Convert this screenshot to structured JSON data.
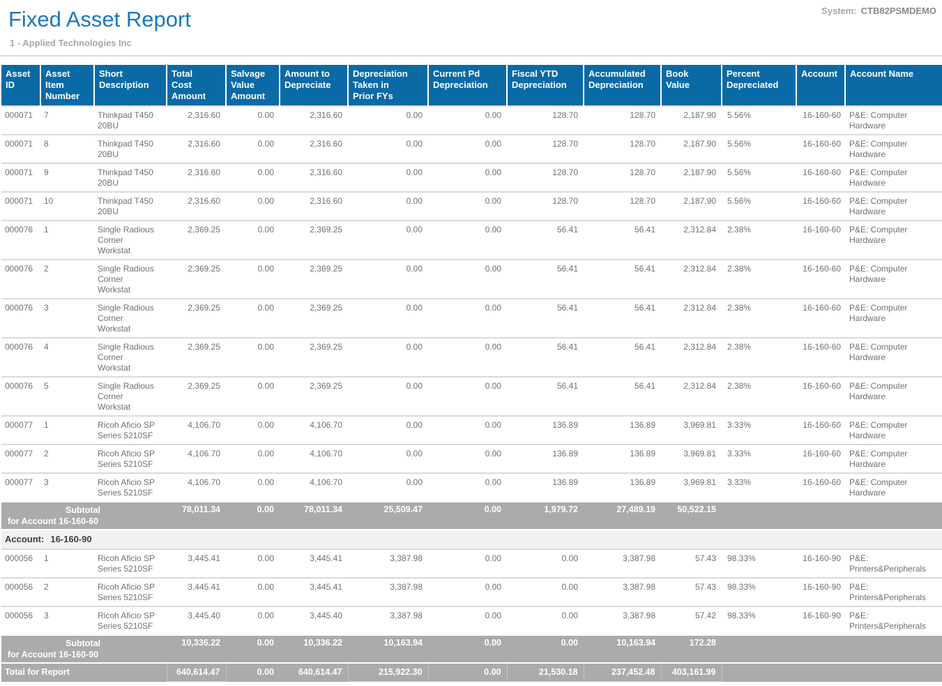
{
  "header": {
    "title": "Fixed Asset Report",
    "company": "1 - Applied Technologies Inc",
    "system_label": "System:",
    "system_value": "CTB82PSMDEMO"
  },
  "colors": {
    "title_blue": "#1878be",
    "header_bg": "#0a6aa6",
    "subtotal_bg": "#a9aca9",
    "section_bg": "#f1f1f1",
    "body_text": "#707070"
  },
  "table": {
    "columns": [
      {
        "key": "asset_id",
        "label": "Asset\nID",
        "align": "left"
      },
      {
        "key": "item_number",
        "label": "Asset\nItem\nNumber",
        "align": "left"
      },
      {
        "key": "short_description",
        "label": "Short\nDescription",
        "align": "left"
      },
      {
        "key": "total_cost",
        "label": "Total\nCost\nAmount",
        "align": "right"
      },
      {
        "key": "salvage_value",
        "label": "Salvage\nValue\nAmount",
        "align": "right"
      },
      {
        "key": "amount_to_depreciate",
        "label": "Amount to\nDepreciate",
        "align": "right"
      },
      {
        "key": "dep_prior_fys",
        "label": "Depreciation\nTaken in\nPrior FYs",
        "align": "right"
      },
      {
        "key": "current_pd",
        "label": "Current Pd\nDepreciation",
        "align": "right"
      },
      {
        "key": "fiscal_ytd",
        "label": "Fiscal YTD\nDepreciation",
        "align": "right"
      },
      {
        "key": "accumulated",
        "label": "Accumulated\nDepreciation",
        "align": "right"
      },
      {
        "key": "book_value",
        "label": "Book\nValue",
        "align": "right"
      },
      {
        "key": "percent",
        "label": "Percent\nDepreciated",
        "align": "left"
      },
      {
        "key": "account",
        "label": "Account",
        "align": "right"
      },
      {
        "key": "account_name",
        "label": "Account Name",
        "align": "left"
      }
    ],
    "body": [
      {
        "type": "row",
        "cells": [
          "000071",
          "7",
          "Thinkpad T450\n20BU",
          "2,316.60",
          "0.00",
          "2,316.60",
          "0.00",
          "0.00",
          "128.70",
          "128.70",
          "2,187.90",
          "5.56%",
          "16-160-60",
          "P&E: Computer\nHardware"
        ]
      },
      {
        "type": "row",
        "cells": [
          "000071",
          "8",
          "Thinkpad T450\n20BU",
          "2,316.60",
          "0.00",
          "2,316.60",
          "0.00",
          "0.00",
          "128.70",
          "128.70",
          "2,187.90",
          "5.56%",
          "16-160-60",
          "P&E: Computer\nHardware"
        ]
      },
      {
        "type": "row",
        "cells": [
          "000071",
          "9",
          "Thinkpad T450\n20BU",
          "2,316.60",
          "0.00",
          "2,316.60",
          "0.00",
          "0.00",
          "128.70",
          "128.70",
          "2,187.90",
          "5.56%",
          "16-160-60",
          "P&E: Computer\nHardware"
        ]
      },
      {
        "type": "row",
        "cells": [
          "000071",
          "10",
          "Thinkpad T450\n20BU",
          "2,316.60",
          "0.00",
          "2,316.60",
          "0.00",
          "0.00",
          "128.70",
          "128.70",
          "2,187.90",
          "5.56%",
          "16-160-60",
          "P&E: Computer\nHardware"
        ]
      },
      {
        "type": "row",
        "cells": [
          "000076",
          "1",
          "Single Radious\nCorner\nWorkstat",
          "2,369.25",
          "0.00",
          "2,369.25",
          "0.00",
          "0.00",
          "56.41",
          "56.41",
          "2,312.84",
          "2.38%",
          "16-160-60",
          "P&E: Computer\nHardware"
        ]
      },
      {
        "type": "row",
        "cells": [
          "000076",
          "2",
          "Single Radious\nCorner\nWorkstat",
          "2,369.25",
          "0.00",
          "2,369.25",
          "0.00",
          "0.00",
          "56.41",
          "56.41",
          "2,312.84",
          "2.38%",
          "16-160-60",
          "P&E: Computer\nHardware"
        ]
      },
      {
        "type": "row",
        "cells": [
          "000076",
          "3",
          "Single Radious\nCorner\nWorkstat",
          "2,369.25",
          "0.00",
          "2,369.25",
          "0.00",
          "0.00",
          "56.41",
          "56.41",
          "2,312.84",
          "2.38%",
          "16-160-60",
          "P&E: Computer\nHardware"
        ]
      },
      {
        "type": "row",
        "cells": [
          "000076",
          "4",
          "Single Radious\nCorner\nWorkstat",
          "2,369.25",
          "0.00",
          "2,369.25",
          "0.00",
          "0.00",
          "56.41",
          "56.41",
          "2,312.84",
          "2.38%",
          "16-160-60",
          "P&E: Computer\nHardware"
        ]
      },
      {
        "type": "row",
        "cells": [
          "000076",
          "5",
          "Single Radious\nCorner\nWorkstat",
          "2,369.25",
          "0.00",
          "2,369.25",
          "0.00",
          "0.00",
          "56.41",
          "56.41",
          "2,312.84",
          "2.38%",
          "16-160-60",
          "P&E: Computer\nHardware"
        ]
      },
      {
        "type": "row",
        "cells": [
          "000077",
          "1",
          "Ricoh Aficio SP\nSeries 5210SF",
          "4,106.70",
          "0.00",
          "4,106.70",
          "0.00",
          "0.00",
          "136.89",
          "136.89",
          "3,969.81",
          "3.33%",
          "16-160-60",
          "P&E: Computer\nHardware"
        ]
      },
      {
        "type": "row",
        "cells": [
          "000077",
          "2",
          "Ricoh Aficio SP\nSeries 5210SF",
          "4,106.70",
          "0.00",
          "4,106.70",
          "0.00",
          "0.00",
          "136.89",
          "136.89",
          "3,969.81",
          "3.33%",
          "16-160-60",
          "P&E: Computer\nHardware"
        ]
      },
      {
        "type": "row",
        "cells": [
          "000077",
          "3",
          "Ricoh Aficio SP\nSeries 5210SF",
          "4,106.70",
          "0.00",
          "4,106.70",
          "0.00",
          "0.00",
          "136.89",
          "136.89",
          "3,969.81",
          "3.33%",
          "16-160-60",
          "P&E: Computer\nHardware"
        ]
      },
      {
        "type": "subtotal",
        "line1": "Subtotal",
        "line2": "for Account 16-160-60",
        "values": [
          "78,011.34",
          "0.00",
          "78,011.34",
          "25,509.47",
          "0.00",
          "1,979.72",
          "27,489.19",
          "50,522.15"
        ]
      },
      {
        "type": "section",
        "label": "Account:",
        "value": "16-160-90"
      },
      {
        "type": "row",
        "cells": [
          "000056",
          "1",
          "Ricoh Aficio SP\nSeries 5210SF",
          "3,445.41",
          "0.00",
          "3,445.41",
          "3,387.98",
          "0.00",
          "0.00",
          "3,387.98",
          "57.43",
          "98.33%",
          "16-160-90",
          "P&E:\nPrinters&Peripherals"
        ]
      },
      {
        "type": "row",
        "cells": [
          "000056",
          "2",
          "Ricoh Aficio SP\nSeries 5210SF",
          "3,445.41",
          "0.00",
          "3,445.41",
          "3,387.98",
          "0.00",
          "0.00",
          "3,387.98",
          "57.43",
          "98.33%",
          "16-160-90",
          "P&E:\nPrinters&Peripherals"
        ]
      },
      {
        "type": "row",
        "cells": [
          "000056",
          "3",
          "Ricoh Aficio SP\nSeries 5210SF",
          "3,445.40",
          "0.00",
          "3,445.40",
          "3,387.98",
          "0.00",
          "0.00",
          "3,387.98",
          "57.42",
          "98.33%",
          "16-160-90",
          "P&E:\nPrinters&Peripherals"
        ]
      },
      {
        "type": "subtotal",
        "line1": "Subtotal",
        "line2": "for Account 16-160-90",
        "values": [
          "10,336.22",
          "0.00",
          "10,336.22",
          "10,163.94",
          "0.00",
          "0.00",
          "10,163.94",
          "172.28"
        ]
      },
      {
        "type": "total",
        "label": "Total for Report",
        "values": [
          "640,614.47",
          "0.00",
          "640,614.47",
          "215,922.30",
          "0.00",
          "21,530.18",
          "237,452.48",
          "403,161.99"
        ],
        "boxed": [
          true,
          false,
          false,
          true,
          true,
          true,
          true,
          true
        ]
      }
    ]
  }
}
